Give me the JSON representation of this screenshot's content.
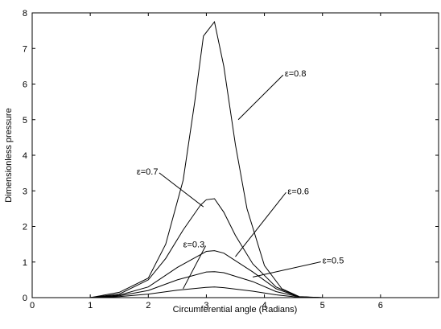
{
  "chart_data": {
    "type": "line",
    "title": "",
    "xlabel": "Circumferential angle (Radians)",
    "ylabel": "Dimensionless pressure",
    "xlim": [
      0,
      7
    ],
    "ylim": [
      0,
      8
    ],
    "xticks": [
      0,
      1,
      2,
      3,
      4,
      5,
      6
    ],
    "yticks": [
      0,
      1,
      2,
      3,
      4,
      5,
      6,
      7,
      8
    ],
    "grid": false,
    "legend": "none",
    "line_color": "#000000",
    "series": [
      {
        "name": "ε=0.3",
        "label_at": [
          2.6,
          1.5
        ],
        "pointer_to": [
          2.6,
          0.25
        ],
        "x": [
          0,
          1.0,
          1.5,
          2.0,
          2.5,
          3.0,
          3.14,
          3.3,
          3.8,
          4.2,
          4.6,
          5.0,
          7.0
        ],
        "y": [
          0,
          0,
          0.03,
          0.1,
          0.21,
          0.29,
          0.3,
          0.28,
          0.18,
          0.08,
          0.01,
          0,
          0
        ]
      },
      {
        "name": "ε=0.5",
        "label_at": [
          5.0,
          1.05
        ],
        "pointer_to": [
          3.8,
          0.58
        ],
        "x": [
          0,
          1.0,
          1.5,
          2.0,
          2.5,
          3.0,
          3.14,
          3.3,
          3.8,
          4.2,
          4.6,
          5.0,
          7.0
        ],
        "y": [
          0,
          0,
          0.05,
          0.2,
          0.5,
          0.72,
          0.73,
          0.7,
          0.45,
          0.17,
          0.02,
          0,
          0
        ]
      },
      {
        "name": "ε=0.6",
        "label_at": [
          4.4,
          3.0
        ],
        "pointer_to": [
          3.5,
          1.15
        ],
        "x": [
          0,
          1.0,
          1.5,
          2.0,
          2.5,
          3.0,
          3.14,
          3.3,
          3.8,
          4.2,
          4.6,
          5.0,
          7.0
        ],
        "y": [
          0,
          0,
          0.07,
          0.3,
          0.85,
          1.3,
          1.32,
          1.25,
          0.72,
          0.25,
          0.02,
          0,
          0
        ]
      },
      {
        "name": "ε=0.7",
        "label_at": [
          1.8,
          3.55
        ],
        "pointer_to": [
          2.95,
          2.55
        ],
        "x": [
          0,
          1.0,
          1.5,
          2.0,
          2.3,
          2.6,
          2.9,
          3.0,
          3.14,
          3.3,
          3.5,
          3.8,
          4.2,
          4.6,
          5.0,
          7.0
        ],
        "y": [
          0,
          0,
          0.1,
          0.5,
          1.1,
          1.9,
          2.6,
          2.75,
          2.78,
          2.4,
          1.75,
          0.95,
          0.3,
          0.02,
          0,
          0
        ]
      },
      {
        "name": "ε=0.8",
        "label_at": [
          4.35,
          6.3
        ],
        "pointer_to": [
          3.55,
          5.0
        ],
        "x": [
          0,
          1.0,
          1.5,
          2.0,
          2.3,
          2.6,
          2.8,
          2.95,
          3.14,
          3.3,
          3.5,
          3.7,
          4.0,
          4.3,
          4.6,
          5.0,
          7.0
        ],
        "y": [
          0,
          0,
          0.15,
          0.55,
          1.5,
          3.3,
          5.5,
          7.35,
          7.75,
          6.5,
          4.3,
          2.5,
          0.9,
          0.25,
          0.03,
          0,
          0
        ]
      }
    ]
  }
}
